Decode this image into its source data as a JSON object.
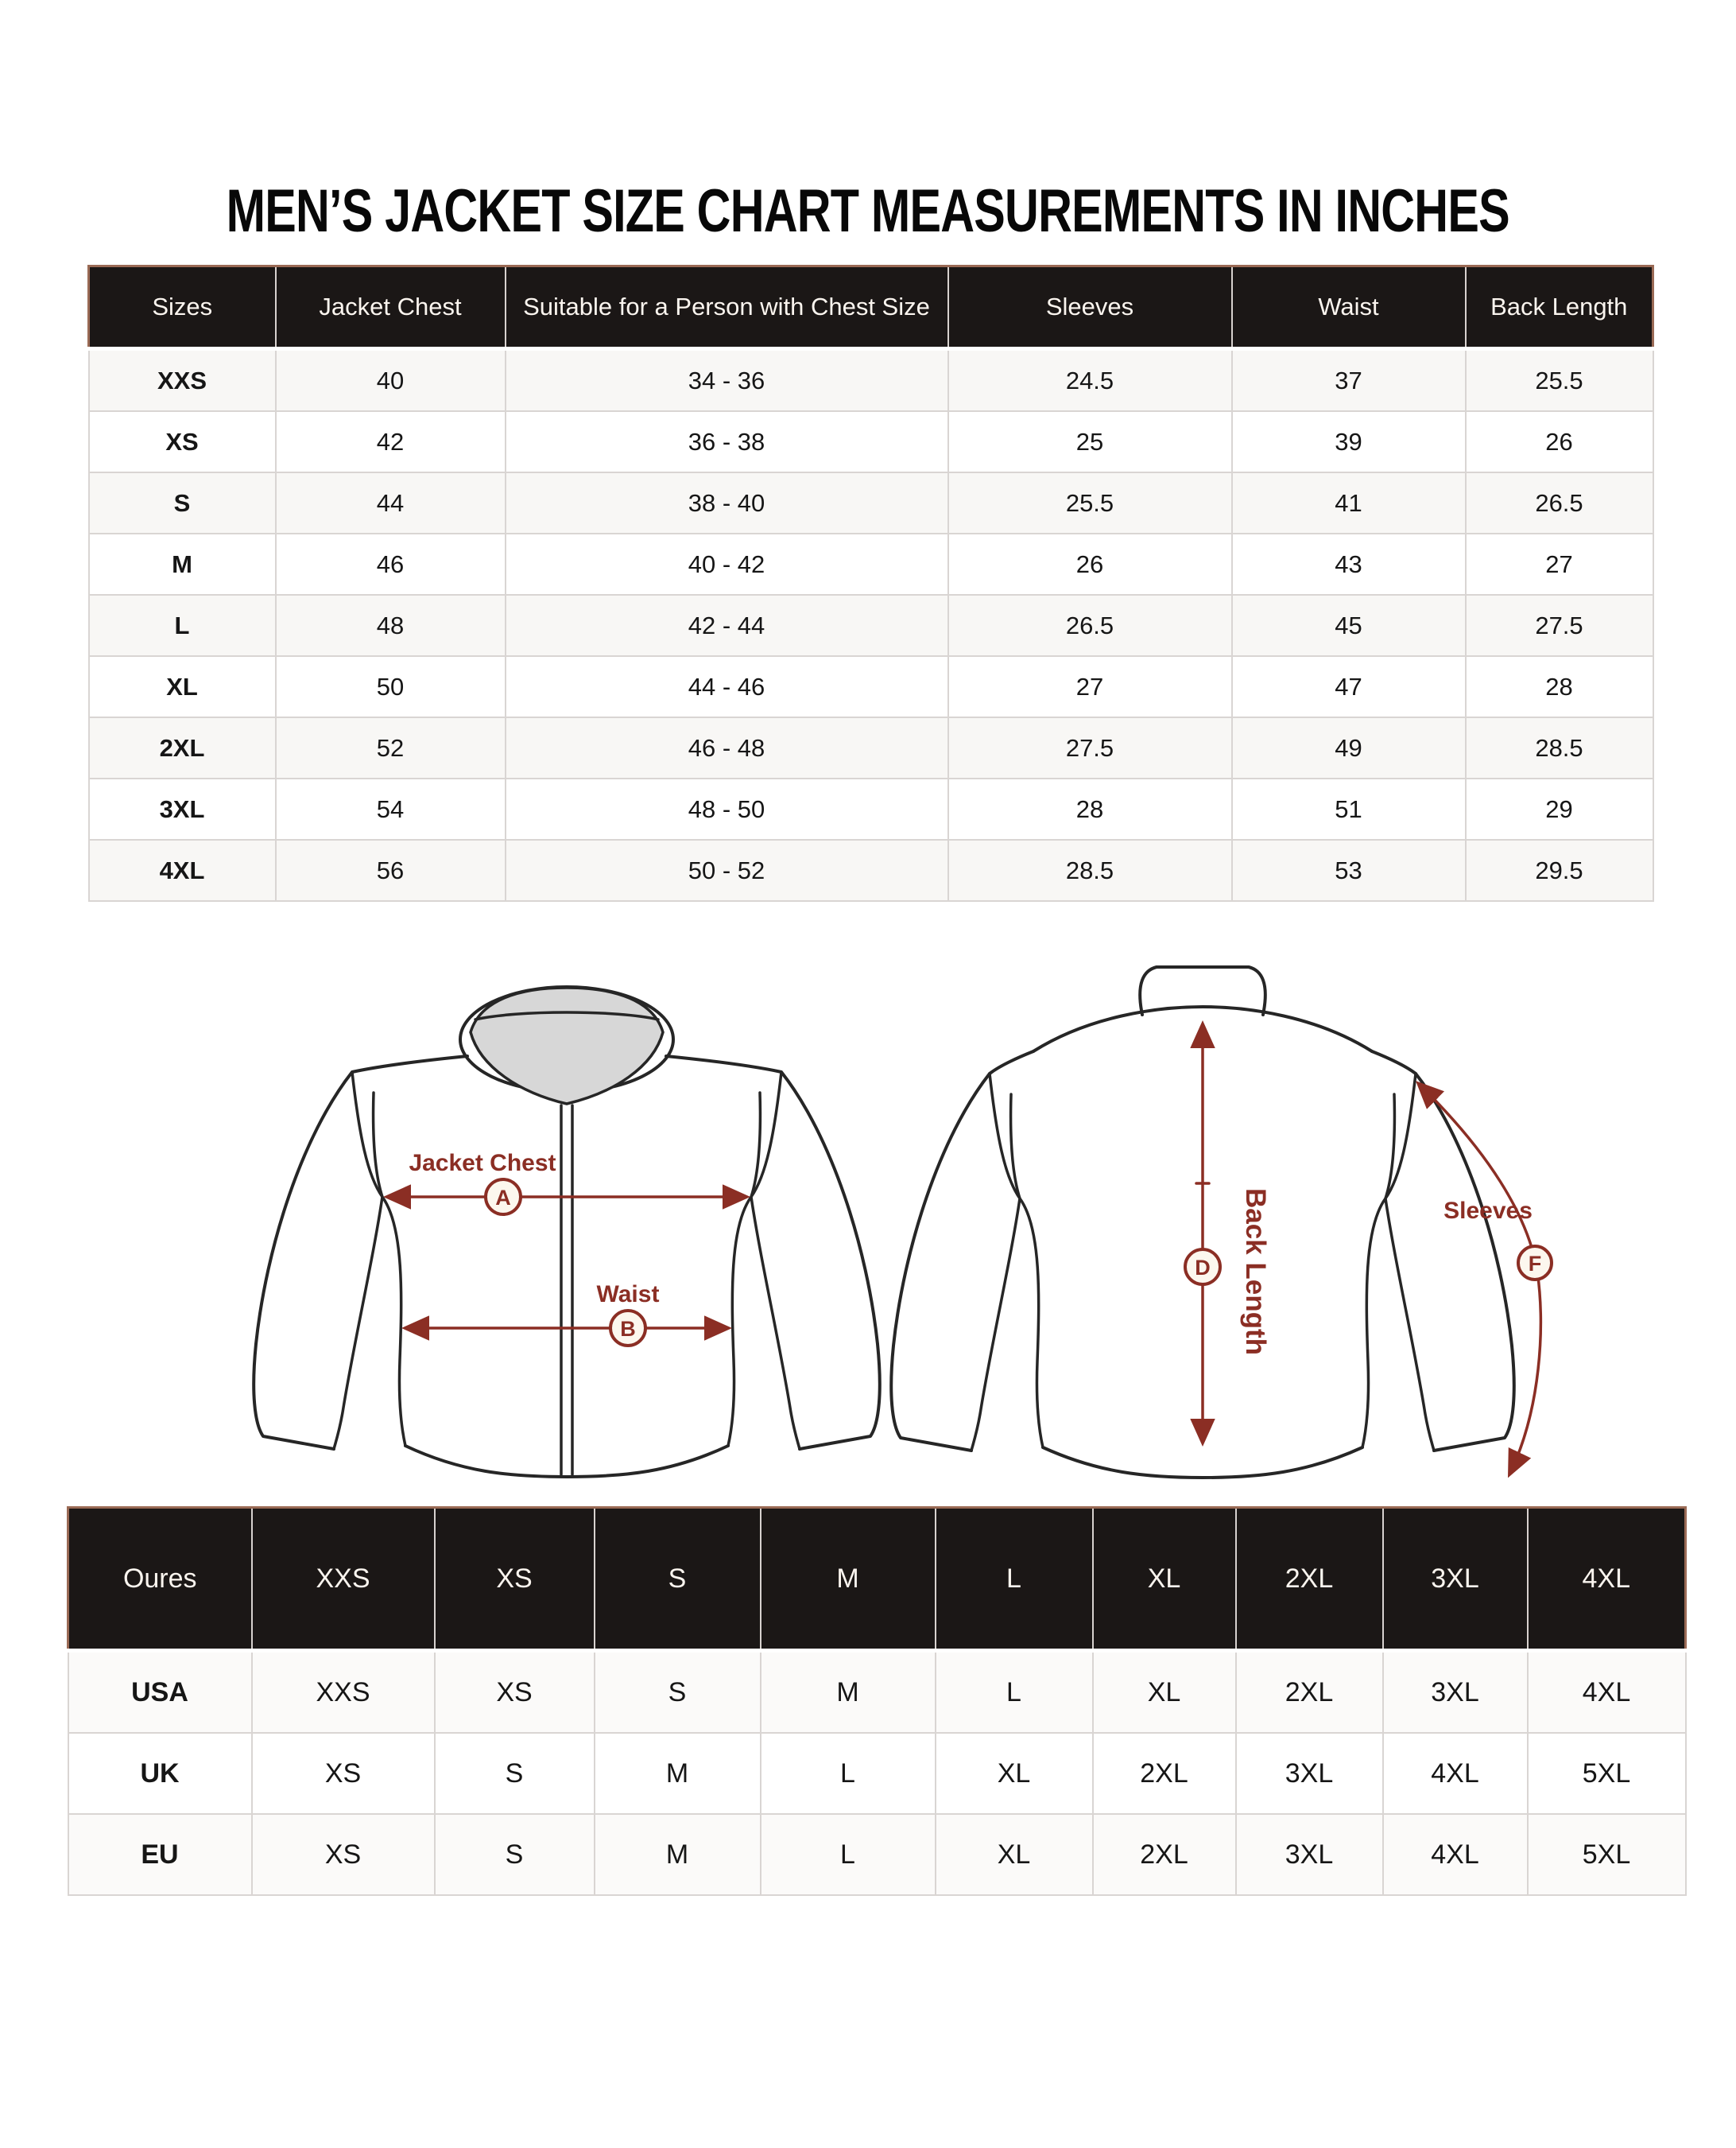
{
  "title": "MEN’S JACKET SIZE CHART MEASUREMENTS IN INCHES",
  "colors": {
    "accent_maroon": "#8B2E24",
    "header_black": "#1b1716",
    "collar_gray": "#d7d7d7"
  },
  "size_table": {
    "columns": [
      "Sizes",
      "Jacket Chest",
      "Suitable for a Person with Chest Size",
      "Sleeves",
      "Waist",
      "Back Length"
    ],
    "rows": [
      [
        "XXS",
        "40",
        "34 - 36",
        "24.5",
        "37",
        "25.5"
      ],
      [
        "XS",
        "42",
        "36 - 38",
        "25",
        "39",
        "26"
      ],
      [
        "S",
        "44",
        "38 - 40",
        "25.5",
        "41",
        "26.5"
      ],
      [
        "M",
        "46",
        "40 - 42",
        "26",
        "43",
        "27"
      ],
      [
        "L",
        "48",
        "42 - 44",
        "26.5",
        "45",
        "27.5"
      ],
      [
        "XL",
        "50",
        "44 - 46",
        "27",
        "47",
        "28"
      ],
      [
        "2XL",
        "52",
        "46 - 48",
        "27.5",
        "49",
        "28.5"
      ],
      [
        "3XL",
        "54",
        "48 - 50",
        "28",
        "51",
        "29"
      ],
      [
        "4XL",
        "56",
        "50 - 52",
        "28.5",
        "53",
        "29.5"
      ]
    ]
  },
  "diagram": {
    "front": {
      "chest_label": "Jacket Chest",
      "chest_letter": "A",
      "waist_label": "Waist",
      "waist_letter": "B"
    },
    "back": {
      "back_length_label": "Back Length",
      "back_length_letter": "D",
      "sleeves_label": "Sleeves",
      "sleeves_letter": "F"
    }
  },
  "conversion_table": {
    "columns": [
      "Oures",
      "XXS",
      "XS",
      "S",
      "M",
      "L",
      "XL",
      "2XL",
      "3XL",
      "4XL"
    ],
    "rows": [
      [
        "USA",
        "XXS",
        "XS",
        "S",
        "M",
        "L",
        "XL",
        "2XL",
        "3XL",
        "4XL"
      ],
      [
        "UK",
        "XS",
        "S",
        "M",
        "L",
        "XL",
        "2XL",
        "3XL",
        "4XL",
        "5XL"
      ],
      [
        "EU",
        "XS",
        "S",
        "M",
        "L",
        "XL",
        "2XL",
        "3XL",
        "4XL",
        "5XL"
      ]
    ]
  }
}
